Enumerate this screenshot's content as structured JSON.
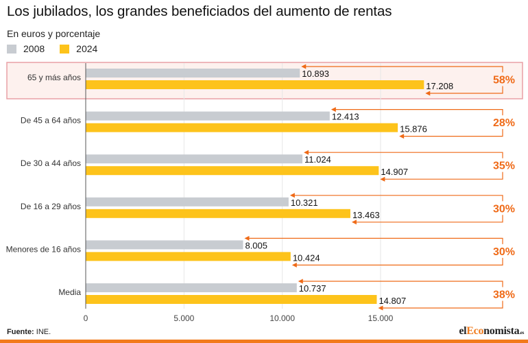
{
  "header": {
    "title": "Los jubilados, los grandes beneficiados del aumento de rentas",
    "subtitle": "En euros y porcentaje"
  },
  "legend": [
    {
      "label": "2008",
      "color": "#c8ccd1"
    },
    {
      "label": "2024",
      "color": "#fdc31b"
    }
  ],
  "footer": {
    "source_label": "Fuente:",
    "source_text": " INE.",
    "logo_prefix": "el",
    "logo_accent": "Eco",
    "logo_suffix": "nomista",
    "logo_tld": ".es"
  },
  "colors": {
    "bar_2008": "#c8ccd1",
    "bar_2024": "#fdc31b",
    "accent": "#ef6a17",
    "highlight_bg": "#fdf1ee",
    "highlight_border": "#e9a0a6"
  },
  "chart_data": {
    "type": "bar",
    "orientation": "horizontal",
    "title": "Los jubilados, los grandes beneficiados del aumento de rentas",
    "subtitle": "En euros y porcentaje",
    "xlabel": "",
    "ylabel": "",
    "xlim": [
      0,
      19000
    ],
    "x_ticks": [
      0,
      5000,
      10000,
      15000
    ],
    "x_tick_labels": [
      "0",
      "5.000",
      "10.000",
      "15.000"
    ],
    "grid": true,
    "legend_position": "top-left",
    "categories": [
      "65 y más años",
      "De 45 a 64 años",
      "De 30 a 44 años",
      "De 16 a 29 años",
      "Menores de 16 años",
      "Media"
    ],
    "highlighted_category": "65 y más años",
    "series": [
      {
        "name": "2008",
        "values": [
          10893,
          12413,
          11024,
          10321,
          8005,
          10737
        ],
        "labels": [
          "10.893",
          "12.413",
          "11.024",
          "10.321",
          "8.005",
          "10.737"
        ]
      },
      {
        "name": "2024",
        "values": [
          17208,
          15876,
          14907,
          13463,
          10424,
          14807
        ],
        "labels": [
          "17.208",
          "15.876",
          "14.907",
          "13.463",
          "10.424",
          "14.807"
        ]
      }
    ],
    "change_labels": [
      "58%",
      "28%",
      "35%",
      "30%",
      "30%",
      "38%"
    ]
  }
}
